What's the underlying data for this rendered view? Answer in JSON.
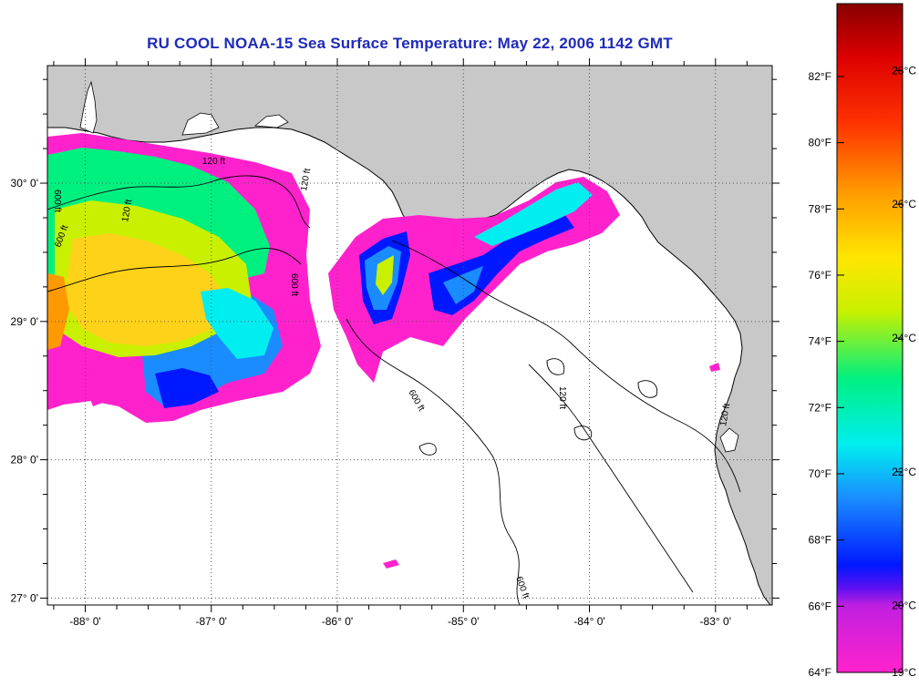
{
  "title": "RU COOL  NOAA-15  Sea Surface Temperature:  May 22, 2006 1142 GMT",
  "map": {
    "lon_range": [
      -88.3,
      -82.55
    ],
    "lat_range": [
      26.95,
      30.85
    ],
    "lon_ticks": [
      {
        "value": -88,
        "label": "-88° 0'"
      },
      {
        "value": -87,
        "label": "-87° 0'"
      },
      {
        "value": -86,
        "label": "-86° 0'"
      },
      {
        "value": -85,
        "label": "-85° 0'"
      },
      {
        "value": -84,
        "label": "-84° 0'"
      },
      {
        "value": -83,
        "label": "-83° 0'"
      }
    ],
    "lat_ticks": [
      {
        "value": 27,
        "label": "27° 0'"
      },
      {
        "value": 28,
        "label": "28° 0'"
      },
      {
        "value": 29,
        "label": "29° 0'"
      },
      {
        "value": 30,
        "label": "30° 0'"
      }
    ],
    "land_color": "#c8c8c8",
    "ocean_color": "#ffffff",
    "grid": "dotted",
    "contour_labels": [
      {
        "text": "600 ft"
      },
      {
        "text": "120 ft"
      },
      {
        "text": "600 ft"
      },
      {
        "text": "120 ft"
      },
      {
        "text": "600 ft"
      },
      {
        "text": "120 ft"
      },
      {
        "text": "120 ft"
      },
      {
        "text": "600 ft"
      },
      {
        "text": "120 ft"
      },
      {
        "text": "600 ft"
      }
    ]
  },
  "colorbar": {
    "range_c": [
      19,
      29
    ],
    "fahrenheit_labels": [
      {
        "value": 64,
        "label": "64°F"
      },
      {
        "value": 66,
        "label": "66°F"
      },
      {
        "value": 68,
        "label": "68°F"
      },
      {
        "value": 70,
        "label": "70°F"
      },
      {
        "value": 72,
        "label": "72°F"
      },
      {
        "value": 74,
        "label": "74°F"
      },
      {
        "value": 76,
        "label": "76°F"
      },
      {
        "value": 78,
        "label": "78°F"
      },
      {
        "value": 80,
        "label": "80°F"
      },
      {
        "value": 82,
        "label": "82°F"
      }
    ],
    "celsius_labels": [
      {
        "value": 19,
        "label": "19°C"
      },
      {
        "value": 20,
        "label": "20°C"
      },
      {
        "value": 22,
        "label": "22°C"
      },
      {
        "value": 24,
        "label": "24°C"
      },
      {
        "value": 26,
        "label": "26°C"
      },
      {
        "value": 28,
        "label": "28°C"
      }
    ],
    "stops": [
      {
        "t": 0.0,
        "color": "#ff22cc"
      },
      {
        "t": 0.1,
        "color": "#c020e0"
      },
      {
        "t": 0.125,
        "color": "#6010f0"
      },
      {
        "t": 0.16,
        "color": "#0018ff"
      },
      {
        "t": 0.26,
        "color": "#1a8cff"
      },
      {
        "t": 0.34,
        "color": "#00eef0"
      },
      {
        "t": 0.44,
        "color": "#00f080"
      },
      {
        "t": 0.54,
        "color": "#c8f000"
      },
      {
        "t": 0.62,
        "color": "#ffe600"
      },
      {
        "t": 0.72,
        "color": "#ff9900"
      },
      {
        "t": 0.82,
        "color": "#ff3300"
      },
      {
        "t": 0.92,
        "color": "#dd0000"
      },
      {
        "t": 1.0,
        "color": "#880000"
      }
    ]
  }
}
